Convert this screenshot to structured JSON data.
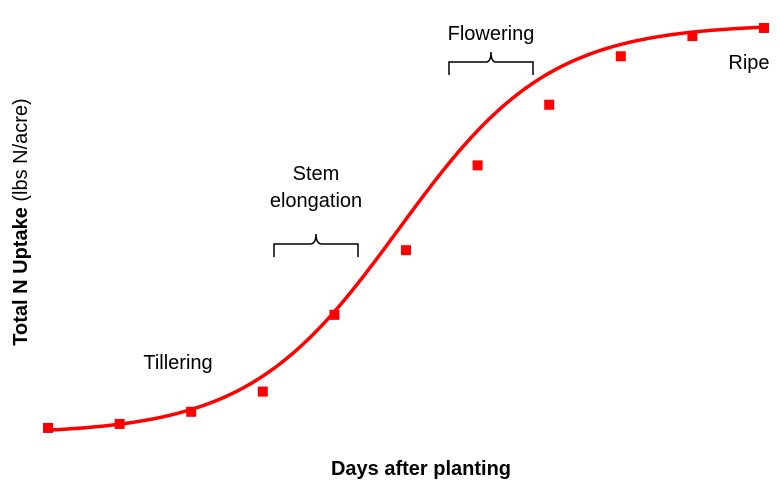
{
  "chart_data": {
    "type": "line",
    "title": "",
    "xlabel": "Days after planting",
    "ylabel_bold": "Total N Uptake",
    "ylabel_unit": " (lbs N/acre)",
    "xlim": [
      0,
      10
    ],
    "ylim": [
      0,
      100
    ],
    "grid": false,
    "legend": "none",
    "series": [
      {
        "color": "#ff0000",
        "marker": "square",
        "x": [
          0,
          1,
          2,
          3,
          4,
          5,
          6,
          7,
          8,
          9,
          10
        ],
        "y": [
          1,
          2,
          5,
          10,
          29,
          45,
          66,
          81,
          93,
          98,
          100
        ]
      }
    ],
    "annotations": [
      {
        "id": "tillering",
        "lines": [
          "Tillering"
        ]
      },
      {
        "id": "stem",
        "lines": [
          "Stem",
          "elongation"
        ]
      },
      {
        "id": "flowering",
        "lines": [
          "Flowering"
        ]
      },
      {
        "id": "ripe",
        "lines": [
          "Ripe"
        ]
      }
    ]
  }
}
